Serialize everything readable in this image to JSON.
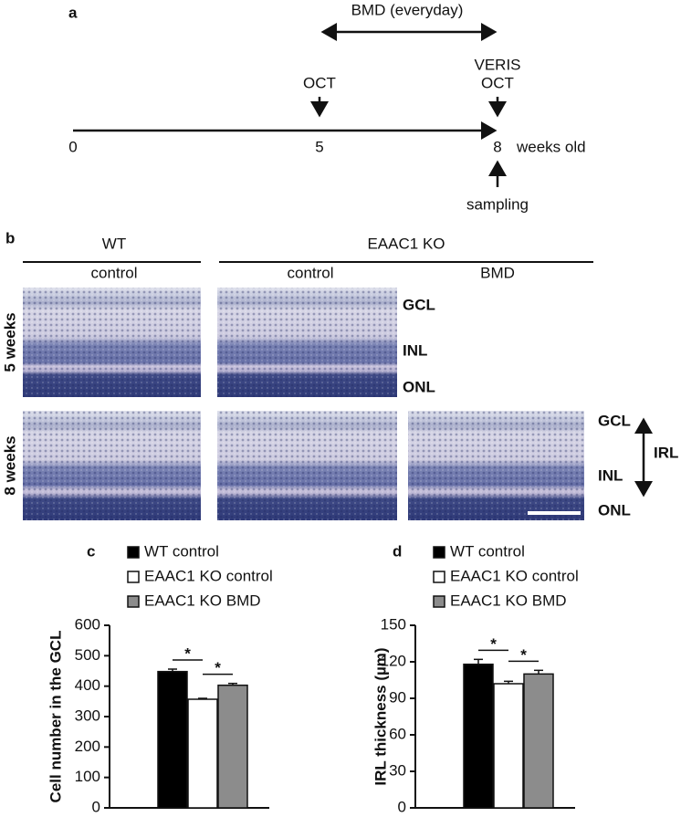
{
  "panel_a": {
    "label": "a",
    "bmd": "BMD (everyday)",
    "oct_5": "OCT",
    "veris": "VERIS",
    "oct_8": "OCT",
    "ticks": [
      "0",
      "5",
      "8"
    ],
    "unit": "weeks old",
    "sampling": "sampling"
  },
  "panel_b": {
    "label": "b",
    "groups": [
      "WT",
      "EAAC1 KO"
    ],
    "conditions": [
      "control",
      "control",
      "BMD"
    ],
    "rows": [
      "5 weeks",
      "8 weeks"
    ],
    "layers_5": [
      "GCL",
      "INL",
      "ONL"
    ],
    "layers_8": [
      "GCL",
      "INL",
      "ONL"
    ],
    "irl": "IRL"
  },
  "chart_data": [
    {
      "type": "bar",
      "panel_label": "c",
      "y_label": "Cell number in the GCL",
      "series": [
        {
          "name": "WT control",
          "color": "#000000",
          "values": [
            448
          ],
          "errors": [
            8
          ]
        },
        {
          "name": "EAAC1 KO control",
          "color": "#ffffff",
          "values": [
            357
          ],
          "errors": [
            3
          ]
        },
        {
          "name": "EAAC1 KO BMD",
          "color": "#8c8c8c",
          "values": [
            403
          ],
          "errors": [
            6
          ]
        }
      ],
      "annotations": [
        "*",
        "*"
      ],
      "ylim": [
        0,
        600
      ],
      "yticks": [
        0,
        100,
        200,
        300,
        400,
        500,
        600
      ]
    },
    {
      "type": "bar",
      "panel_label": "d",
      "y_label": "IRL thickness (µm)",
      "series": [
        {
          "name": "WT control",
          "color": "#000000",
          "values": [
            118
          ],
          "errors": [
            4
          ]
        },
        {
          "name": "EAAC1 KO control",
          "color": "#ffffff",
          "values": [
            102
          ],
          "errors": [
            2
          ]
        },
        {
          "name": "EAAC1 KO BMD",
          "color": "#8c8c8c",
          "values": [
            110
          ],
          "errors": [
            3
          ]
        }
      ],
      "annotations": [
        "*",
        "*"
      ],
      "ylim": [
        0,
        150
      ],
      "yticks": [
        0,
        30,
        60,
        90,
        120,
        150
      ]
    }
  ]
}
